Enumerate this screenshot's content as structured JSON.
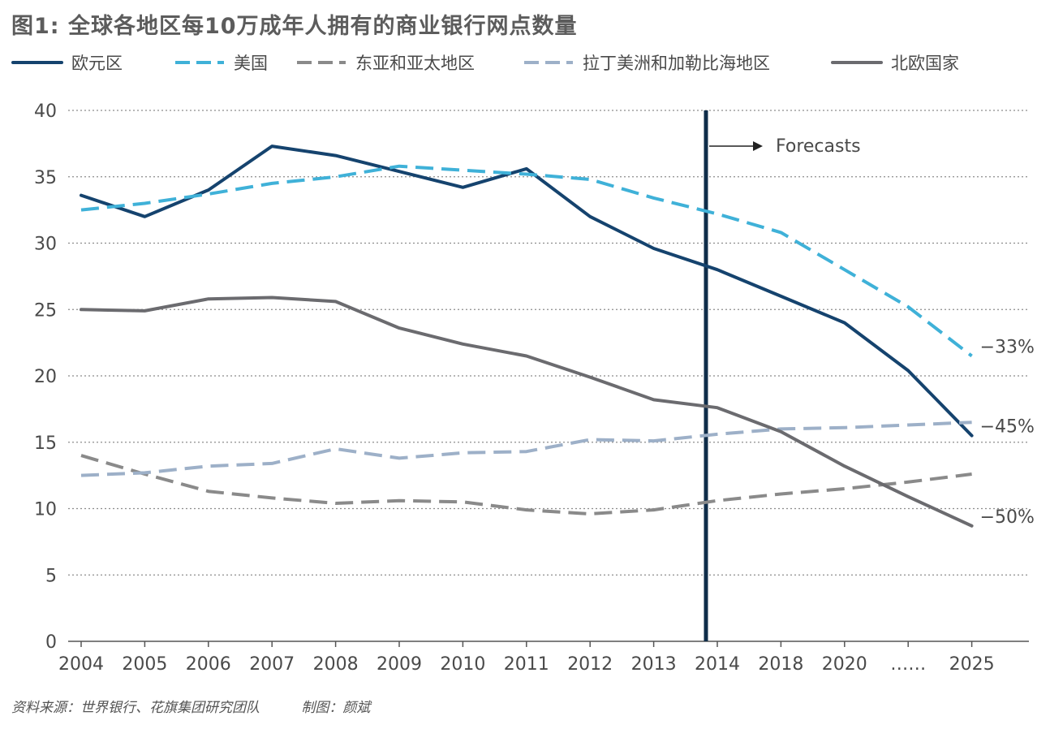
{
  "title": "图1: 全球各地区每10万成年人拥有的商业银行网点数量",
  "source": "资料来源：世界银行、花旗集团研究团队",
  "credit": "制图：颜斌",
  "chart_data": {
    "type": "line",
    "title": "图1: 全球各地区每10万成年人拥有的商业银行网点数量",
    "categories": [
      "2004",
      "2005",
      "2006",
      "2007",
      "2008",
      "2009",
      "2010",
      "2011",
      "2012",
      "2013",
      "2014",
      "2018",
      "2020",
      "……",
      "2025"
    ],
    "ylim": [
      0,
      40
    ],
    "yticks": [
      0,
      5,
      10,
      15,
      20,
      25,
      30,
      35,
      40
    ],
    "grid": true,
    "forecast_label": "Forecasts",
    "forecast_start": "2014",
    "series": [
      {
        "name": "欧元区",
        "color": "#15436e",
        "dashed": false,
        "values": [
          33.6,
          32.0,
          34.0,
          37.3,
          36.6,
          35.4,
          34.2,
          35.6,
          32.0,
          29.6,
          28.0,
          26.0,
          24.0,
          20.4,
          15.5
        ],
        "end_label": "−45%"
      },
      {
        "name": "美国",
        "color": "#3fb1d8",
        "dashed": true,
        "values": [
          32.5,
          33.0,
          33.7,
          34.5,
          35.0,
          35.8,
          35.5,
          35.2,
          34.8,
          33.4,
          32.2,
          30.8,
          28.0,
          25.2,
          21.5
        ],
        "end_label": "−33%"
      },
      {
        "name": "东亚和亚太地区",
        "color": "#8a8a8a",
        "dashed": true,
        "values": [
          14.0,
          12.6,
          11.3,
          10.8,
          10.4,
          10.6,
          10.5,
          9.9,
          9.6,
          9.9,
          10.6,
          11.1,
          11.5,
          12.0,
          12.6
        ],
        "end_label": ""
      },
      {
        "name": "拉丁美洲和加勒比海地区",
        "color": "#9db0c8",
        "dashed": true,
        "values": [
          12.5,
          12.7,
          13.2,
          13.4,
          14.5,
          13.8,
          14.2,
          14.3,
          15.2,
          15.1,
          15.6,
          16.0,
          16.1,
          16.3,
          16.5
        ],
        "end_label": ""
      },
      {
        "name": "北欧国家",
        "color": "#6b6b6f",
        "dashed": false,
        "values": [
          25.0,
          24.9,
          25.8,
          25.9,
          25.6,
          23.6,
          22.4,
          21.5,
          19.9,
          18.2,
          17.6,
          15.8,
          13.2,
          10.9,
          8.7
        ],
        "end_label": "−50%"
      }
    ]
  }
}
